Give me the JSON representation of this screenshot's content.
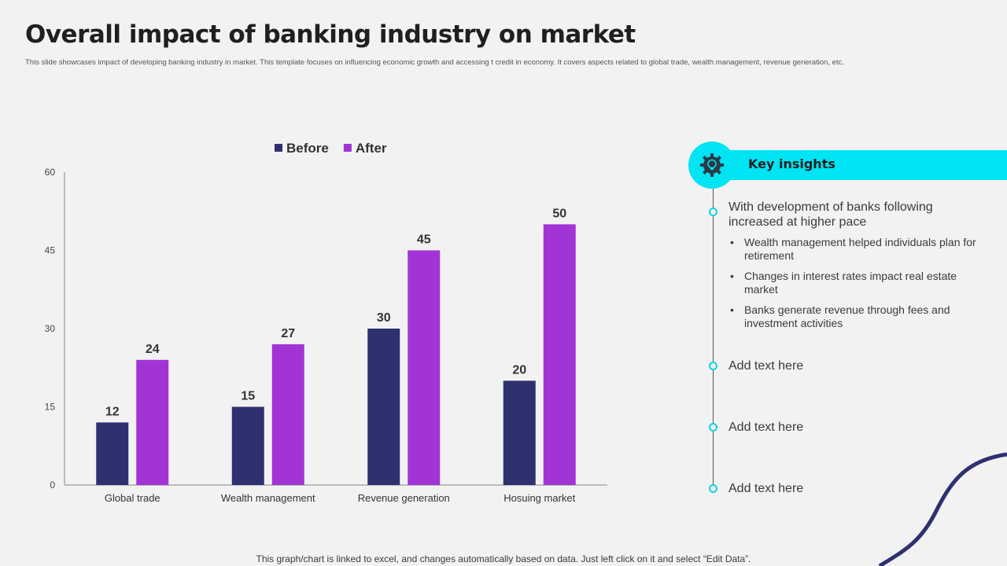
{
  "title": "Overall impact of banking industry on market",
  "subtitle": "This slide showcases impact of developing banking industry in market. This template focuses on influencing economic growth and accessing t credit in economy. It covers aspects related to global trade, wealth management, revenue generation, etc.",
  "chart_data": {
    "type": "bar",
    "categories": [
      "Global trade",
      "Wealth management",
      "Revenue generation",
      "Hosuing market"
    ],
    "series": [
      {
        "name": "Before",
        "values": [
          12,
          15,
          30,
          20
        ],
        "color": "#2e3070"
      },
      {
        "name": "After",
        "values": [
          24,
          27,
          45,
          50
        ],
        "color": "#a234d6"
      }
    ],
    "ylim": [
      0,
      60
    ],
    "yticks": [
      0,
      15,
      30,
      45,
      60
    ],
    "legend_position": "top-center",
    "grid": false,
    "data_labels": true
  },
  "insights": {
    "heading": "Key insights",
    "icon": "gear-bulb-icon",
    "main_point": "With development of banks following increased at higher pace",
    "bullets": [
      "Wealth management helped individuals plan for retirement",
      "Changes in interest rates impact real estate market",
      "Banks generate revenue through fees and investment activities"
    ],
    "placeholders": [
      "Add text here",
      "Add text here",
      "Add text here"
    ],
    "accent_color": "#00e4f3"
  },
  "footer": "This graph/chart is linked to excel, and changes automatically based on data. Just left click on it and select “Edit Data”."
}
